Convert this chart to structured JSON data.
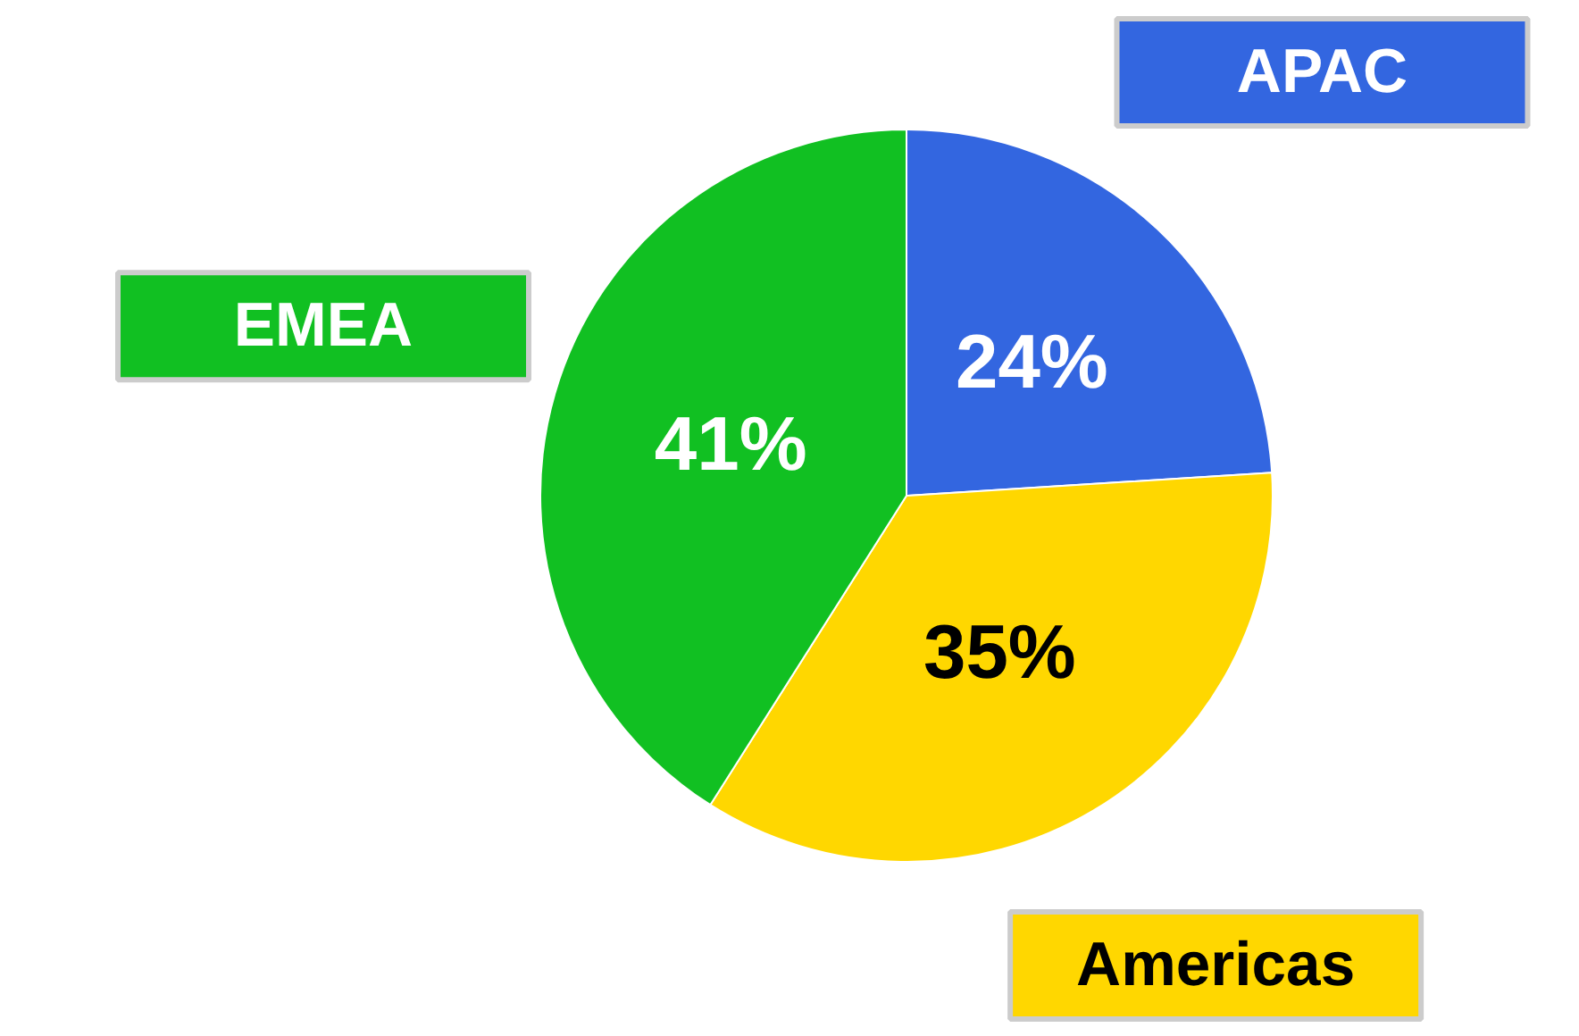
{
  "chart_data": {
    "type": "pie",
    "categories": [
      "APAC",
      "Americas",
      "EMEA"
    ],
    "values": [
      24,
      35,
      41
    ],
    "colors": [
      "#3366e0",
      "#ffd700",
      "#11c022"
    ],
    "value_labels": [
      "24%",
      "35%",
      "41%"
    ]
  }
}
